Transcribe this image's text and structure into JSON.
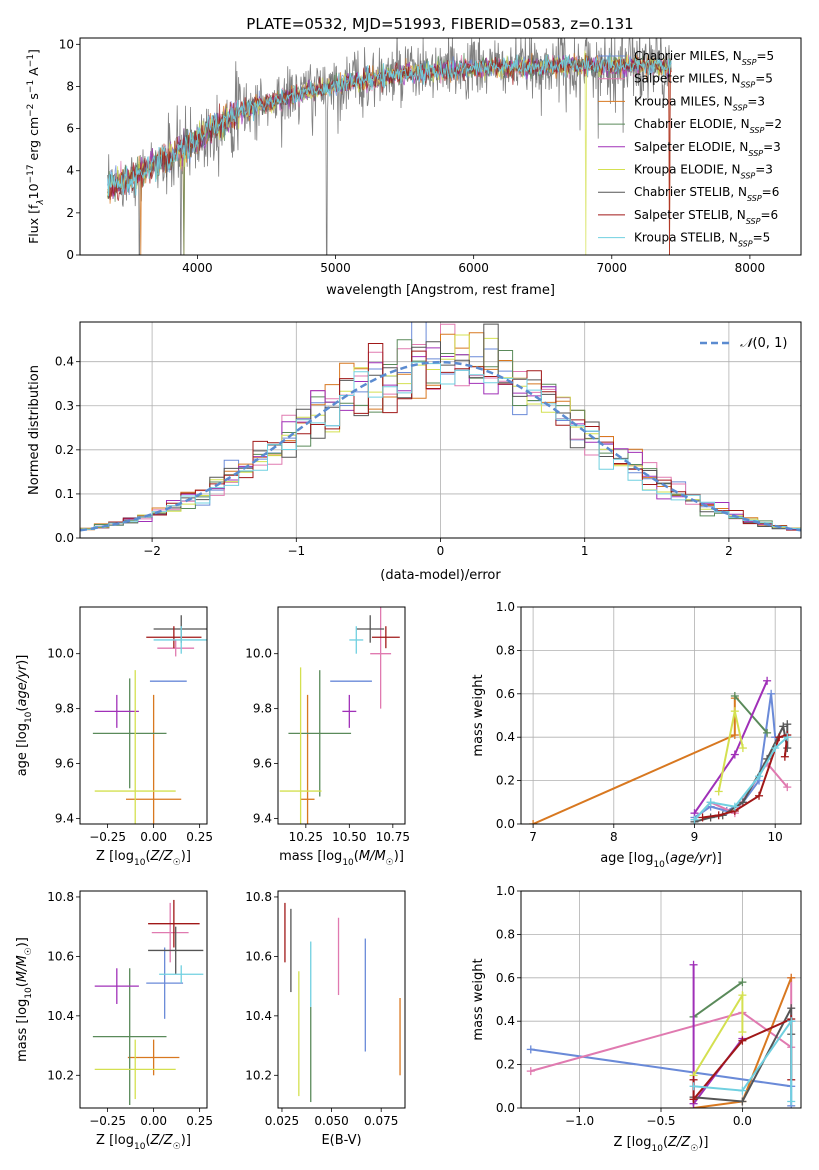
{
  "figure_title": "PLATE=0532, MJD=51993, FIBERID=0583, z=0.131",
  "colors": {
    "Chabrier MILES": "#6a8ad8",
    "Salpeter MILES": "#e07ab0",
    "Kroupa MILES": "#d87820",
    "Chabrier ELODIE": "#5a8a5a",
    "Salpeter ELODIE": "#a030b8",
    "Kroupa ELODIE": "#d4e050",
    "Chabrier STELIB": "#555555",
    "Salpeter STELIB": "#a01818",
    "Kroupa STELIB": "#70d0e0",
    "data": "#808080"
  },
  "chart_data": [
    {
      "id": "spectrum",
      "type": "line",
      "xlabel": "wavelength [Angstrom, rest frame]",
      "ylabel": "Flux [f",
      "xlim": [
        3150,
        8370
      ],
      "ylim": [
        0,
        10.3
      ],
      "xticks": [
        4000,
        5000,
        6000,
        7000,
        8000
      ],
      "yticks": [
        0,
        2,
        4,
        6,
        8,
        10
      ],
      "legend_placement": "right",
      "legend": [
        {
          "name": "Chabrier MILES",
          "nssp": "5"
        },
        {
          "name": "Salpeter MILES",
          "nssp": "5"
        },
        {
          "name": "Kroupa MILES",
          "nssp": "3"
        },
        {
          "name": "Chabrier ELODIE",
          "nssp": "2"
        },
        {
          "name": "Salpeter ELODIE",
          "nssp": "3"
        },
        {
          "name": "Kroupa ELODIE",
          "nssp": "3"
        },
        {
          "name": "Chabrier STELIB",
          "nssp": "6"
        },
        {
          "name": "Salpeter STELIB",
          "nssp": "6"
        },
        {
          "name": "Kroupa STELIB",
          "nssp": "5"
        }
      ],
      "continuum_x": [
        3350,
        3500,
        3700,
        3900,
        4100,
        4300,
        4500,
        4700,
        4900,
        5100,
        5300,
        5500,
        5700,
        5900,
        6100,
        6300,
        6500,
        6700,
        6900,
        7100,
        7300,
        7420
      ],
      "continuum_y": [
        3.2,
        3.6,
        4.3,
        5.0,
        6.0,
        6.8,
        7.2,
        7.6,
        7.9,
        8.2,
        8.4,
        8.6,
        8.7,
        8.8,
        8.9,
        8.9,
        8.95,
        9.0,
        9.0,
        9.0,
        9.0,
        8.9
      ]
    },
    {
      "id": "residuals",
      "type": "histogram",
      "xlabel": "(data-model)/error",
      "ylabel": "Normed distribution",
      "xlim": [
        -2.5,
        2.5
      ],
      "ylim": [
        0,
        0.49
      ],
      "xticks": [
        -2,
        -1,
        0,
        1,
        2
      ],
      "yticks": [
        0.0,
        0.1,
        0.2,
        0.3,
        0.4
      ],
      "grid": true,
      "legend_placement": "top-right",
      "reference_curve": "N(0,1)",
      "bin_width": 0.1
    },
    {
      "id": "age-Z",
      "type": "scatter",
      "xlabel": "Z [log10(Z/Z☉)]",
      "ylabel": "age  [log10(age/yr)]",
      "xlim": [
        -0.4,
        0.29
      ],
      "ylim": [
        9.38,
        10.17
      ],
      "xticks": [
        -0.25,
        0.0,
        0.25
      ],
      "yticks": [
        9.4,
        9.6,
        9.8,
        10.0
      ],
      "points": [
        {
          "name": "Chabrier MILES",
          "x": 0.08,
          "xerr": 0.1,
          "y": 9.9,
          "yerr": 0.0
        },
        {
          "name": "Salpeter MILES",
          "x": 0.12,
          "xerr": 0.1,
          "y": 10.02,
          "yerr": 0.03
        },
        {
          "name": "Kroupa MILES",
          "x": 0.0,
          "xerr": 0.15,
          "y": 9.47,
          "yerr": 0.38
        },
        {
          "name": "Chabrier ELODIE",
          "x": -0.13,
          "xerr": 0.2,
          "y": 9.71,
          "yerr": 0.2
        },
        {
          "name": "Salpeter ELODIE",
          "x": -0.2,
          "xerr": 0.12,
          "y": 9.79,
          "yerr": 0.06
        },
        {
          "name": "Kroupa ELODIE",
          "x": -0.1,
          "xerr": 0.22,
          "y": 9.5,
          "yerr": 0.44
        },
        {
          "name": "Chabrier STELIB",
          "x": 0.15,
          "xerr": 0.15,
          "y": 10.09,
          "yerr": 0.05
        },
        {
          "name": "Salpeter STELIB",
          "x": 0.11,
          "xerr": 0.15,
          "y": 10.06,
          "yerr": 0.04
        },
        {
          "name": "Kroupa STELIB",
          "x": 0.15,
          "xerr": 0.15,
          "y": 10.05,
          "yerr": 0.05
        }
      ]
    },
    {
      "id": "age-mass",
      "type": "scatter",
      "xlabel": "mass [log10(M/M☉)]",
      "ylabel": "",
      "xlim": [
        10.09,
        10.82
      ],
      "ylim": [
        9.38,
        10.17
      ],
      "xticks": [
        10.25,
        10.5,
        10.75
      ],
      "yticks": [
        9.4,
        9.6,
        9.8,
        10.0
      ],
      "points": [
        {
          "name": "Chabrier MILES",
          "x": 10.51,
          "xerr": 0.12,
          "y": 9.9,
          "yerr": 0.0
        },
        {
          "name": "Salpeter MILES",
          "x": 10.68,
          "xerr": 0.06,
          "y": 10.0,
          "yerr": 0.2
        },
        {
          "name": "Kroupa MILES",
          "x": 10.26,
          "xerr": 0.04,
          "y": 9.47,
          "yerr": 0.38
        },
        {
          "name": "Chabrier ELODIE",
          "x": 10.33,
          "xerr": 0.18,
          "y": 9.71,
          "yerr": 0.23
        },
        {
          "name": "Salpeter ELODIE",
          "x": 10.5,
          "xerr": 0.04,
          "y": 9.79,
          "yerr": 0.06
        },
        {
          "name": "Kroupa ELODIE",
          "x": 10.22,
          "xerr": 0.12,
          "y": 9.5,
          "yerr": 0.45
        },
        {
          "name": "Chabrier STELIB",
          "x": 10.62,
          "xerr": 0.08,
          "y": 10.09,
          "yerr": 0.05
        },
        {
          "name": "Salpeter STELIB",
          "x": 10.71,
          "xerr": 0.08,
          "y": 10.06,
          "yerr": 0.04
        },
        {
          "name": "Kroupa STELIB",
          "x": 10.54,
          "xerr": 0.04,
          "y": 10.05,
          "yerr": 0.05
        }
      ]
    },
    {
      "id": "massweight-age",
      "type": "line",
      "xlabel": "age  [log10(age/yr)]",
      "ylabel": "mass weight",
      "xlim": [
        6.85,
        10.32
      ],
      "ylim": [
        0,
        1
      ],
      "xticks": [
        7,
        8,
        9,
        10
      ],
      "yticks": [
        0.0,
        0.2,
        0.4,
        0.6,
        0.8,
        1.0
      ],
      "grid": true,
      "series": [
        {
          "name": "Chabrier MILES",
          "x": [
            9.0,
            9.2,
            9.4,
            9.6,
            9.8,
            9.95,
            10.0
          ],
          "y": [
            0.03,
            0.08,
            0.06,
            0.1,
            0.2,
            0.6,
            0.4
          ]
        },
        {
          "name": "Salpeter MILES",
          "x": [
            9.0,
            9.2,
            9.5,
            9.9,
            10.15
          ],
          "y": [
            0.02,
            0.1,
            0.05,
            0.28,
            0.17
          ]
        },
        {
          "name": "Kroupa MILES",
          "x": [
            7.0,
            9.5,
            9.5
          ],
          "y": [
            0.0,
            0.41,
            0.58
          ]
        },
        {
          "name": "Chabrier ELODIE",
          "x": [
            9.5,
            9.9
          ],
          "y": [
            0.59,
            0.42
          ]
        },
        {
          "name": "Salpeter ELODIE",
          "x": [
            9.0,
            9.5,
            9.9
          ],
          "y": [
            0.05,
            0.32,
            0.66
          ]
        },
        {
          "name": "Kroupa ELODIE",
          "x": [
            9.3,
            9.5,
            9.6
          ],
          "y": [
            0.15,
            0.52,
            0.35
          ]
        },
        {
          "name": "Chabrier STELIB",
          "x": [
            9.0,
            9.2,
            9.35,
            9.6,
            9.9,
            10.1,
            10.15,
            10.15
          ],
          "y": [
            0.01,
            0.03,
            0.04,
            0.1,
            0.3,
            0.45,
            0.35,
            0.46
          ]
        },
        {
          "name": "Salpeter STELIB",
          "x": [
            9.1,
            9.3,
            9.5,
            9.8,
            10.05,
            10.15,
            10.12
          ],
          "y": [
            0.03,
            0.04,
            0.06,
            0.13,
            0.4,
            0.41,
            0.31
          ]
        },
        {
          "name": "Kroupa STELIB",
          "x": [
            9.0,
            9.2,
            9.5,
            9.8,
            10.0,
            10.15
          ],
          "y": [
            0.02,
            0.1,
            0.08,
            0.22,
            0.35,
            0.4
          ]
        }
      ]
    },
    {
      "id": "mass-Z",
      "type": "scatter",
      "xlabel": "Z [log10(Z/Z☉)]",
      "ylabel": "mass [log10(M/M☉)]",
      "xlim": [
        -0.4,
        0.29
      ],
      "ylim": [
        10.09,
        10.82
      ],
      "xticks": [
        -0.25,
        0.0,
        0.25
      ],
      "yticks": [
        10.2,
        10.4,
        10.6,
        10.8
      ],
      "points": [
        {
          "name": "Chabrier MILES",
          "x": 0.06,
          "xerr": 0.1,
          "y": 10.51,
          "yerr": 0.12
        },
        {
          "name": "Salpeter MILES",
          "x": 0.09,
          "xerr": 0.1,
          "y": 10.68,
          "yerr": 0.1
        },
        {
          "name": "Kroupa MILES",
          "x": 0.0,
          "xerr": 0.14,
          "y": 10.26,
          "yerr": 0.06
        },
        {
          "name": "Chabrier ELODIE",
          "x": -0.13,
          "xerr": 0.2,
          "y": 10.33,
          "yerr": 0.23
        },
        {
          "name": "Salpeter ELODIE",
          "x": -0.2,
          "xerr": 0.12,
          "y": 10.5,
          "yerr": 0.06
        },
        {
          "name": "Kroupa ELODIE",
          "x": -0.1,
          "xerr": 0.22,
          "y": 10.22,
          "yerr": 0.1
        },
        {
          "name": "Chabrier STELIB",
          "x": 0.12,
          "xerr": 0.15,
          "y": 10.62,
          "yerr": 0.08
        },
        {
          "name": "Salpeter STELIB",
          "x": 0.11,
          "xerr": 0.14,
          "y": 10.71,
          "yerr": 0.08
        },
        {
          "name": "Kroupa STELIB",
          "x": 0.15,
          "xerr": 0.12,
          "y": 10.54,
          "yerr": 0.03
        }
      ]
    },
    {
      "id": "mass-EBV",
      "type": "scatter",
      "xlabel": "E(B-V)",
      "ylabel": "",
      "xlim": [
        0.023,
        0.087
      ],
      "ylim": [
        10.09,
        10.82
      ],
      "xticks": [
        0.025,
        0.05,
        0.075
      ],
      "yticks": [
        10.2,
        10.4,
        10.6,
        10.8
      ],
      "points": [
        {
          "name": "Salpeter STELIB",
          "x": 0.0265,
          "y": 10.68,
          "yerr": 0.1
        },
        {
          "name": "Chabrier STELIB",
          "x": 0.0295,
          "y": 10.62,
          "yerr": 0.14
        },
        {
          "name": "Kroupa ELODIE",
          "x": 0.0335,
          "y": 10.34,
          "yerr": 0.21
        },
        {
          "name": "Chabrier ELODIE",
          "x": 0.0395,
          "y": 10.27,
          "yerr": 0.16
        },
        {
          "name": "Kroupa STELIB",
          "x": 0.0395,
          "y": 10.54,
          "yerr": 0.11
        },
        {
          "name": "Salpeter MILES",
          "x": 0.0535,
          "y": 10.6,
          "yerr": 0.13
        },
        {
          "name": "Chabrier MILES",
          "x": 0.067,
          "y": 10.47,
          "yerr": 0.19
        },
        {
          "name": "Kroupa MILES",
          "x": 0.0845,
          "y": 10.33,
          "yerr": 0.13
        }
      ]
    },
    {
      "id": "massweight-Z",
      "type": "line",
      "xlabel": "Z [log10(Z/Z☉)]",
      "ylabel": "mass weight",
      "xlim": [
        -1.36,
        0.36
      ],
      "ylim": [
        0,
        1
      ],
      "xticks": [
        -1.0,
        -0.5,
        0.0
      ],
      "yticks": [
        0.0,
        0.2,
        0.4,
        0.6,
        0.8,
        1.0
      ],
      "grid": true,
      "series": [
        {
          "name": "Chabrier MILES",
          "x": [
            -1.3,
            0.3,
            0.3,
            0.3
          ],
          "y": [
            0.27,
            0.1,
            0.4,
            0.01
          ]
        },
        {
          "name": "Salpeter MILES",
          "x": [
            -1.3,
            0.0,
            0.3,
            0.3
          ],
          "y": [
            0.17,
            0.44,
            0.28,
            0.6
          ]
        },
        {
          "name": "Kroupa MILES",
          "x": [
            -0.3,
            0.0,
            0.3
          ],
          "y": [
            0.0,
            0.03,
            0.6
          ]
        },
        {
          "name": "Chabrier ELODIE",
          "x": [
            -0.3,
            0.0
          ],
          "y": [
            0.42,
            0.58
          ]
        },
        {
          "name": "Salpeter ELODIE",
          "x": [
            -0.3,
            -0.3,
            0.0
          ],
          "y": [
            0.66,
            0.02,
            0.32
          ]
        },
        {
          "name": "Kroupa ELODIE",
          "x": [
            -0.3,
            0.0,
            0.0
          ],
          "y": [
            0.15,
            0.52,
            0.35
          ]
        },
        {
          "name": "Chabrier STELIB",
          "x": [
            -0.3,
            0.0,
            0.3,
            0.3
          ],
          "y": [
            0.05,
            0.03,
            0.46,
            0.34
          ]
        },
        {
          "name": "Salpeter STELIB",
          "x": [
            -0.3,
            -0.3,
            0.0,
            0.3,
            0.3
          ],
          "y": [
            0.13,
            0.04,
            0.31,
            0.41,
            0.13
          ]
        },
        {
          "name": "Kroupa STELIB",
          "x": [
            -0.3,
            0.0,
            0.3,
            0.3
          ],
          "y": [
            0.1,
            0.08,
            0.4,
            0.03
          ]
        }
      ]
    }
  ]
}
